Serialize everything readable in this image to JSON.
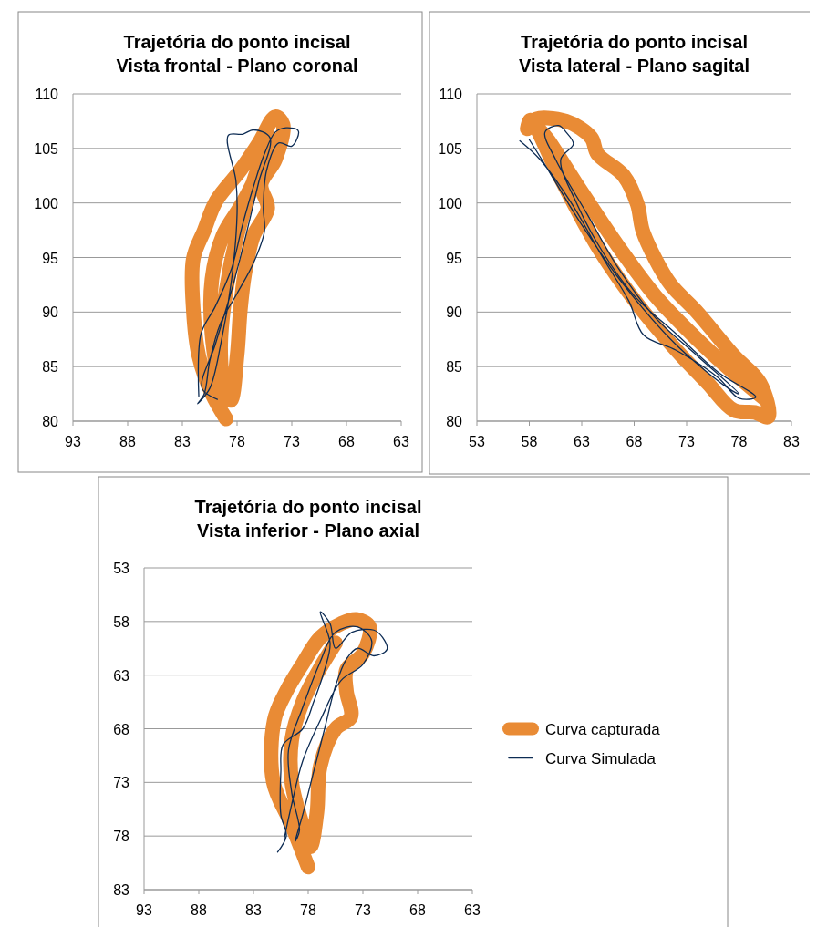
{
  "chart_data": [
    {
      "type": "line",
      "title": "Trajetória do ponto incisal",
      "subtitle": "Vista frontal - Plano coronal",
      "xlim": [
        93,
        63
      ],
      "xticks": [
        93,
        88,
        83,
        78,
        73,
        68,
        63
      ],
      "ylim": [
        80,
        110
      ],
      "yticks": [
        80,
        85,
        90,
        95,
        100,
        105,
        110
      ],
      "grid": "y",
      "legend": false,
      "marker": "none",
      "series": [
        {
          "color": "#e98b35",
          "x": [
            79,
            80.3,
            81.5,
            82,
            82,
            81,
            79.9,
            77.7,
            76,
            74.5,
            73.8,
            74.5,
            75.8,
            75.2,
            76.5,
            77.3,
            77.7,
            78,
            78.6,
            79.5,
            80.3,
            80.3,
            79.3,
            77.5,
            76,
            75,
            76.5,
            78,
            79,
            79.5,
            79.2
          ],
          "values": [
            80.2,
            82.5,
            86,
            90.2,
            94.9,
            97.5,
            100.2,
            103,
            105.5,
            107.9,
            107.2,
            104,
            101.7,
            99.5,
            97,
            93.5,
            90.2,
            86,
            81.9,
            83.5,
            88,
            93,
            97,
            100,
            103,
            106,
            102,
            97,
            92,
            87,
            82
          ]
        },
        {
          "color": "#0d2c54",
          "x": [
            81.5,
            81.3,
            80,
            78.5,
            77.5,
            76.5,
            75.5,
            74.5,
            73.5,
            72.4,
            73,
            74.2,
            75.3,
            75.6,
            75.5,
            76.5,
            78,
            79.5,
            80.5,
            81,
            81.6,
            80.5,
            79.5,
            78.5,
            78,
            78.1,
            78.8,
            77.5,
            76.5,
            75,
            76,
            77.2,
            78.5,
            80,
            81.2,
            79.8
          ],
          "values": [
            82.3,
            88,
            90.5,
            94,
            98,
            101.5,
            104.5,
            106.5,
            106.9,
            106.6,
            105.2,
            105.5,
            103,
            99.5,
            97.4,
            94.5,
            91.7,
            89,
            85.5,
            82.5,
            81.6,
            83,
            87,
            93,
            99,
            102,
            106.2,
            106.3,
            106.7,
            106,
            102,
            97,
            92,
            87,
            83,
            82
          ]
        }
      ]
    },
    {
      "type": "line",
      "title": "Trajetória do ponto incisal",
      "subtitle": "Vista lateral - Plano sagital",
      "xlim": [
        53,
        83
      ],
      "xticks": [
        53,
        58,
        63,
        68,
        73,
        78,
        83
      ],
      "ylim": [
        80,
        110
      ],
      "yticks": [
        80,
        85,
        90,
        95,
        100,
        105,
        110
      ],
      "grid": "y",
      "legend": false,
      "marker": "none",
      "series": [
        {
          "color": "#e98b35",
          "x": [
            57.8,
            58.1,
            60.8,
            64.7,
            68.5,
            72.5,
            75,
            77.5,
            79.5,
            80.8,
            80,
            77.5,
            73.9,
            71.5,
            70,
            68.8,
            68.3,
            67,
            64.5,
            63.9,
            61.5,
            58.5,
            60,
            63,
            66.5,
            70,
            74,
            78,
            80.5
          ],
          "values": [
            106.8,
            107.6,
            102.6,
            95.7,
            90.5,
            86,
            83.5,
            81,
            80.8,
            80.4,
            83.5,
            86,
            90.1,
            92.5,
            94.9,
            97.5,
            99.9,
            102.5,
            104.5,
            106,
            107.5,
            107.6,
            105.5,
            101,
            96,
            91.5,
            87.5,
            84,
            82
          ]
        },
        {
          "color": "#0d2c54",
          "x": [
            57.1,
            59,
            62,
            65,
            67.5,
            68.9,
            72,
            76,
            78,
            79.6,
            76,
            72,
            68,
            65,
            62.5,
            61,
            62.2,
            61.5,
            60.8,
            59.5,
            60.5,
            63.5,
            66.5,
            70,
            74,
            78,
            77,
            72,
            67,
            63,
            59.5,
            58
          ],
          "values": [
            105.7,
            104,
            100,
            95,
            91,
            87.9,
            86.5,
            84,
            82.1,
            82.2,
            84.5,
            88,
            91.5,
            95.5,
            100,
            104,
            105.4,
            106.5,
            107.1,
            106.5,
            104,
            99,
            94,
            89.5,
            86,
            82.5,
            83,
            87,
            92.5,
            98,
            103.5,
            105.8
          ]
        }
      ]
    },
    {
      "type": "line",
      "title": "Trajetória do ponto incisal",
      "subtitle": "Vista inferior - Plano axial",
      "xlim": [
        93,
        63
      ],
      "xticks": [
        93,
        88,
        83,
        78,
        73,
        68,
        63
      ],
      "ylim": [
        83,
        53
      ],
      "yticks": [
        53,
        58,
        63,
        68,
        73,
        78,
        83
      ],
      "grid": "y",
      "legend": "right",
      "marker": "none",
      "series": [
        {
          "name": "Curva capturada",
          "color": "#e98b35",
          "x": [
            78,
            79.5,
            81.2,
            81.1,
            80,
            78.6,
            76.9,
            75,
            73.6,
            72.4,
            73,
            74.5,
            74.5,
            74.1,
            75.5,
            76.9,
            77.2,
            77.8,
            78.5,
            79.5,
            79.5,
            78.5,
            77,
            75.5
          ],
          "values": [
            80.9,
            77,
            72.9,
            67.2,
            64.5,
            62.1,
            59.5,
            58.2,
            57.8,
            58.5,
            61,
            62.5,
            64.5,
            66.9,
            68,
            71.5,
            75.8,
            79,
            77,
            73,
            69,
            65.5,
            62.5,
            60
          ]
        },
        {
          "name": "Curva Simulada",
          "color": "#0d2c54",
          "x": [
            80.8,
            80,
            80.5,
            80.5,
            80.3,
            78.5,
            77.5,
            76.5,
            76,
            76.9,
            76,
            75.5,
            74,
            72,
            71.2,
            70.8,
            72,
            73.5,
            74.5,
            75.5,
            76.5,
            77.5,
            78.5,
            79.2,
            78.8,
            79.5,
            79.8,
            78.5,
            77,
            75.5,
            73.5,
            72.2,
            73,
            75,
            76.8,
            78.5,
            79.5,
            80.2
          ],
          "values": [
            79.5,
            78,
            76,
            72,
            69.5,
            68,
            65.5,
            62.5,
            60,
            57.1,
            58.2,
            60.5,
            59,
            58.8,
            59.5,
            60.6,
            61.2,
            60.5,
            61.5,
            64,
            68,
            72,
            76,
            78.5,
            77.5,
            74,
            70,
            66,
            62,
            59,
            58.5,
            59.8,
            62,
            63.5,
            67,
            71,
            75,
            78.3
          ]
        }
      ]
    }
  ]
}
